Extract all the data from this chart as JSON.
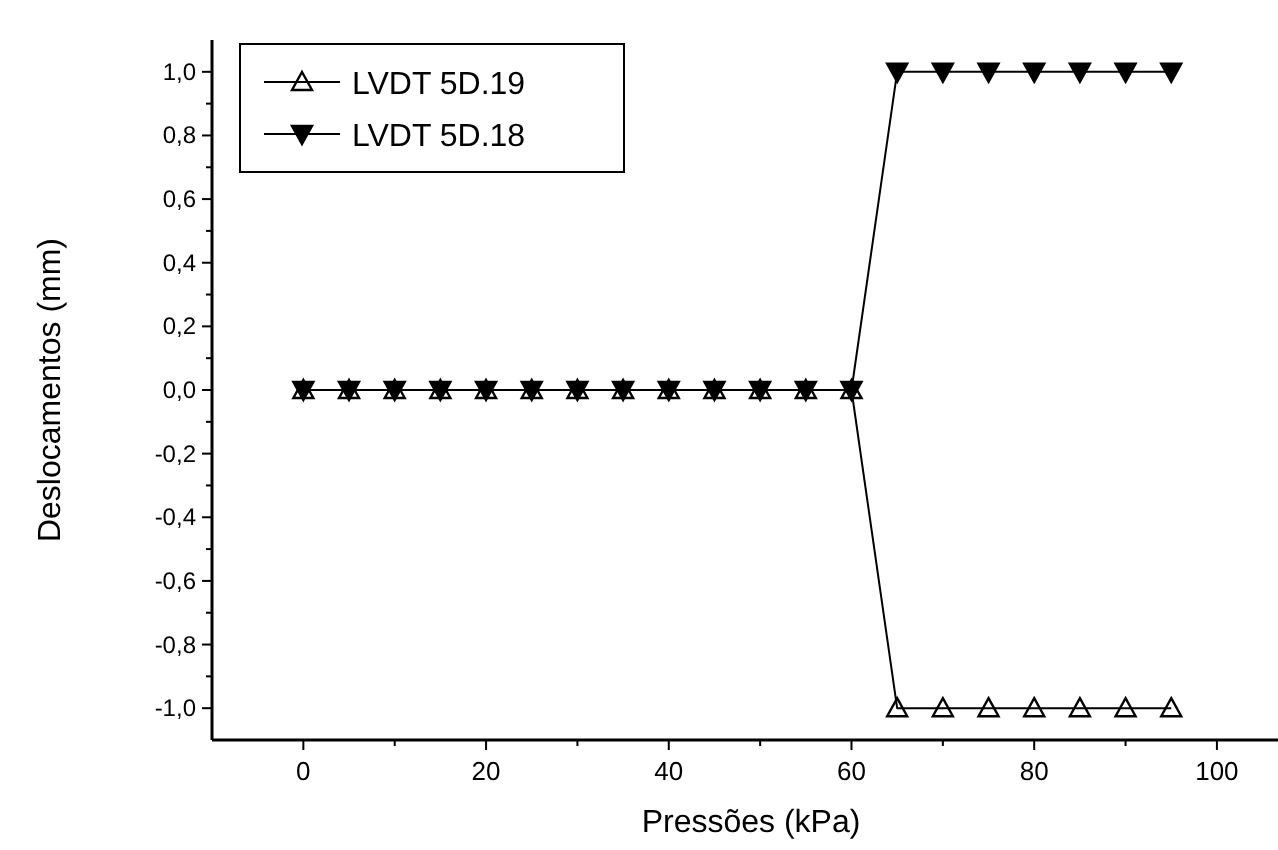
{
  "chart_data": {
    "type": "line",
    "xlabel": "Pressões (kPa)",
    "ylabel": "Deslocamentos (mm)",
    "x": [
      0,
      5,
      10,
      15,
      20,
      25,
      30,
      35,
      40,
      45,
      50,
      55,
      60,
      65,
      70,
      75,
      80,
      85,
      90,
      95
    ],
    "series": [
      {
        "name": "LVDT 5D.19",
        "color": "#000000",
        "marker": "triangle",
        "values": [
          0,
          0,
          0,
          0,
          0,
          0,
          0,
          0,
          0,
          0,
          0,
          0,
          0,
          -1,
          -1,
          -1,
          -1,
          -1,
          -1,
          -1
        ]
      },
      {
        "name": "LVDT 5D.18",
        "color": "#000000",
        "marker": "triangle-down",
        "values": [
          0,
          0,
          0,
          0,
          0,
          0,
          0,
          0,
          0,
          0,
          0,
          0,
          0,
          1,
          1,
          1,
          1,
          1,
          1,
          1
        ]
      }
    ],
    "xlim": [
      -10,
      108
    ],
    "ylim": [
      -1.1,
      1.1
    ],
    "xticks": [
      0,
      {
        "value": 10,
        "label": null
      },
      20,
      {
        "value": 30,
        "label": null
      },
      40,
      {
        "value": 50,
        "label": null
      },
      60,
      {
        "value": 70,
        "label": null
      },
      80,
      {
        "value": 90,
        "label": null
      },
      100
    ],
    "yticks": [
      {
        "value": -1,
        "label": "-1,0"
      },
      {
        "value": -0.9,
        "label": null
      },
      {
        "value": -0.8,
        "label": "-0,8"
      },
      {
        "value": -0.7,
        "label": null
      },
      {
        "value": -0.6,
        "label": "-0,6"
      },
      {
        "value": -0.5,
        "label": null
      },
      {
        "value": -0.4,
        "label": "-0,4"
      },
      {
        "value": -0.3,
        "label": null
      },
      {
        "value": -0.2,
        "label": "-0,2"
      },
      {
        "value": -0.1,
        "label": null
      },
      {
        "value": 0,
        "label": "0,0"
      },
      {
        "value": 0.1,
        "label": null
      },
      {
        "value": 0.2,
        "label": "0,2"
      },
      {
        "value": 0.3,
        "label": null
      },
      {
        "value": 0.4,
        "label": "0,4"
      },
      {
        "value": 0.5,
        "label": null
      },
      {
        "value": 0.6,
        "label": "0,6"
      },
      {
        "value": 0.7,
        "label": null
      },
      {
        "value": 0.8,
        "label": "0,8"
      },
      {
        "value": 0.9,
        "label": null
      },
      {
        "value": 1,
        "label": "1,0"
      }
    ],
    "grid": false,
    "legend": "top left",
    "line_style": "solid"
  }
}
